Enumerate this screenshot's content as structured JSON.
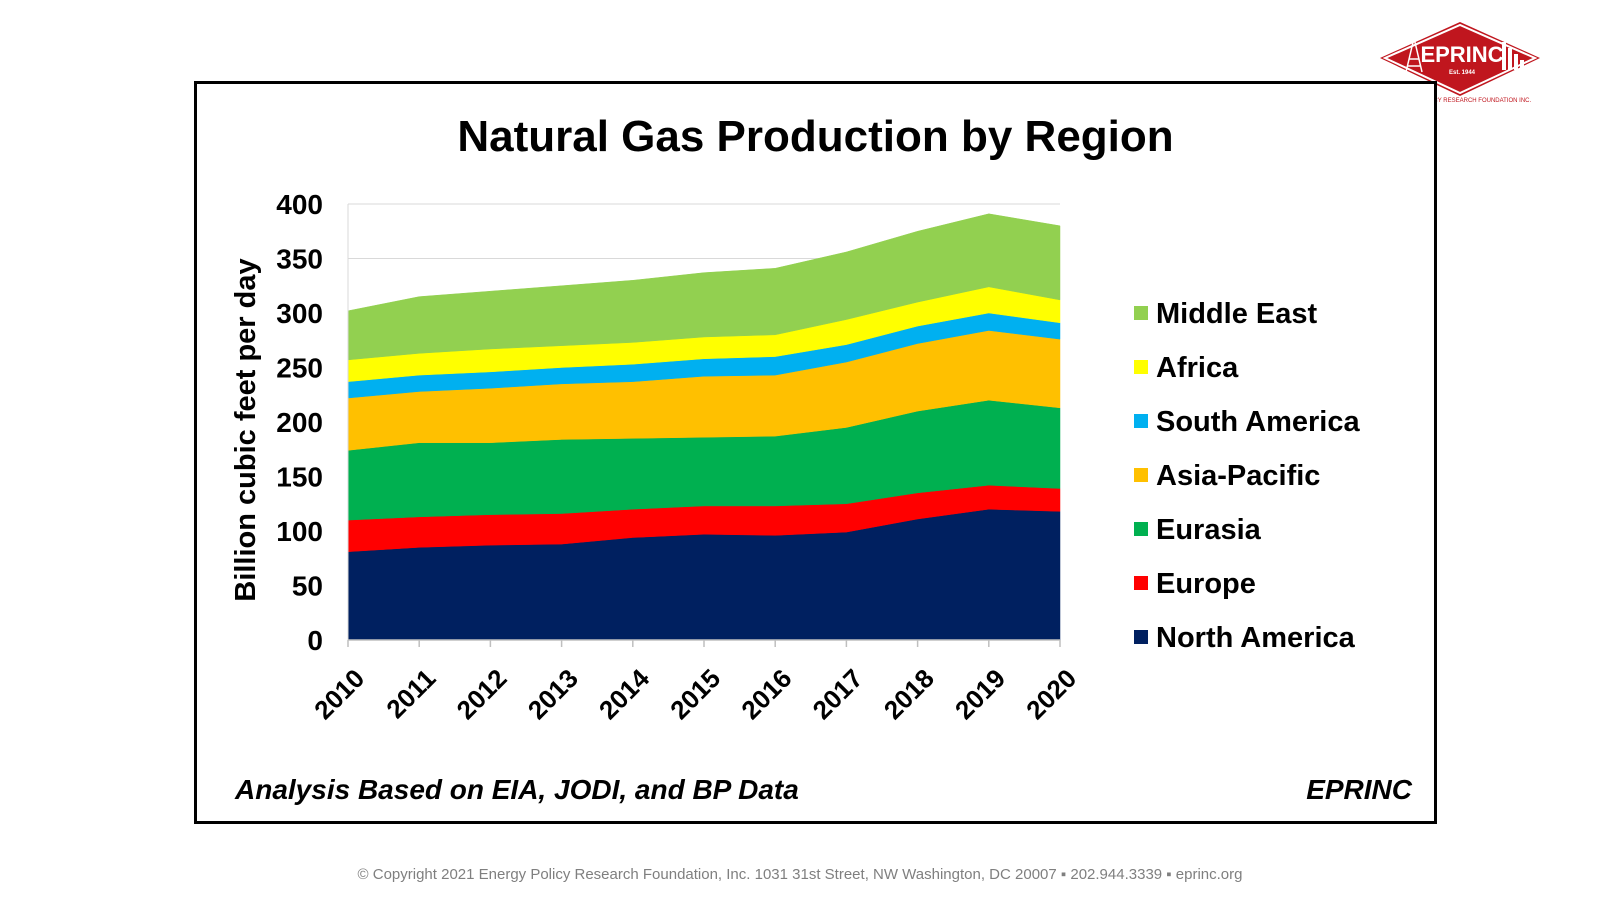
{
  "logo": {
    "name": "EPRINC",
    "established": "Est. 1944",
    "arc_text": "ENERGY POLICY RESEARCH FOUNDATION INC.",
    "color": "#c0161e"
  },
  "chart_data": {
    "type": "area",
    "stacked": true,
    "title": "Natural Gas Production by Region",
    "ylabel": "Billion cubic feet per day",
    "xlabel": "",
    "ylim": [
      0,
      400
    ],
    "yticks": [
      0,
      50,
      100,
      150,
      200,
      250,
      300,
      350,
      400
    ],
    "grid": true,
    "legend_position": "right",
    "x": [
      "2010",
      "2011",
      "2012",
      "2013",
      "2014",
      "2015",
      "2016",
      "2017",
      "2018",
      "2019",
      "2020"
    ],
    "series": [
      {
        "name": "North America",
        "color": "#002060",
        "values": [
          81,
          85,
          87,
          88,
          94,
          97,
          96,
          99,
          111,
          120,
          118
        ]
      },
      {
        "name": "Europe",
        "color": "#ff0000",
        "values": [
          29,
          28,
          28,
          28,
          26,
          26,
          27,
          26,
          24,
          22,
          21
        ]
      },
      {
        "name": "Eurasia",
        "color": "#00b050",
        "values": [
          64,
          68,
          66,
          68,
          65,
          63,
          64,
          70,
          75,
          78,
          74
        ]
      },
      {
        "name": "Asia-Pacific",
        "color": "#ffc000",
        "values": [
          48,
          47,
          50,
          51,
          52,
          56,
          56,
          60,
          62,
          64,
          63
        ]
      },
      {
        "name": "South America",
        "color": "#00b0f0",
        "values": [
          15,
          15,
          15,
          15,
          16,
          16,
          17,
          16,
          16,
          16,
          15
        ]
      },
      {
        "name": "Africa",
        "color": "#ffff00",
        "values": [
          20,
          20,
          21,
          20,
          20,
          20,
          20,
          23,
          22,
          24,
          21
        ]
      },
      {
        "name": "Middle East",
        "color": "#92d050",
        "values": [
          45,
          52,
          53,
          55,
          57,
          59,
          61,
          62,
          65,
          67,
          68
        ]
      }
    ]
  },
  "source_note": "Analysis Based on EIA, JODI, and BP Data",
  "brand_note": "EPRINC",
  "footer": "© Copyright 2021 Energy Policy Research Foundation, Inc. 1031 31st Street, NW Washington, DC 20007 ▪ 202.944.3339 ▪ eprinc.org"
}
